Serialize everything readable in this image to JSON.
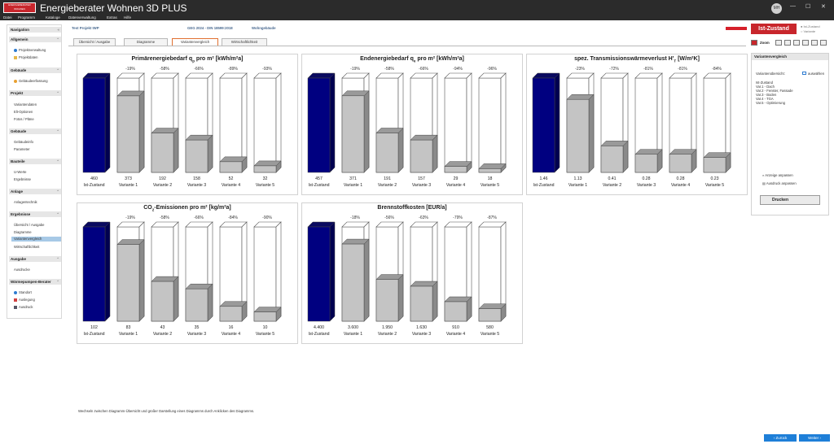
{
  "app": {
    "logo_text": "ENERGIEBERATER WOHNEN",
    "title": "Energieberater Wohnen 3D PLUS",
    "avatar": "MH",
    "min": "—",
    "max": "☐",
    "close": "✕"
  },
  "menu": [
    "Datei",
    "Programm",
    "Kataloge",
    "Datenverwaltung",
    "Extras",
    "Hilfe"
  ],
  "sidebar": {
    "title": "Navigation",
    "sections": [
      {
        "title": "Allgemein",
        "items": [
          "Projektverwaltung",
          "Projektdaten"
        ]
      },
      {
        "title": "Gebäude",
        "items": [
          "Gebäudeerfassung"
        ]
      },
      {
        "title": "Projekt",
        "items": [
          "Variantendaten",
          "Elt-Optionen",
          "Fotos / Pläne"
        ]
      },
      {
        "title": "Gebäude",
        "items": [
          "Gebäudeinfo",
          "Parameter"
        ]
      },
      {
        "title": "Bauteile",
        "items": [
          "U-Werte",
          "Ergebnisse"
        ]
      },
      {
        "title": "Anlage",
        "items": [
          "Anlagentechnik"
        ]
      },
      {
        "title": "Ergebnisse",
        "items": [
          "Übersicht / Ausgabe",
          "Diagramme",
          "Variantenvergleich",
          "Wirtschaftlichkeit"
        ]
      },
      {
        "title": "Ausgabe",
        "items": [
          "Ausdrucke"
        ]
      },
      {
        "title": "Wärmepumpen-Berater",
        "items": [
          "Standort",
          "Auslegung",
          "Ausdruck"
        ]
      }
    ]
  },
  "header": {
    "project": "Test Projekt IWP",
    "norm": "GEG 2024 - DIN 18599:2018",
    "type": "Wohngebäude"
  },
  "tabs": [
    "Übersicht / Ausgabe",
    "Diagramme",
    "Variantenvergleich",
    "Wirtschaftlichkeit"
  ],
  "right_panel": {
    "state_button": "Ist-Zustand",
    "radio1": "Ist-Zustand",
    "radio2": "Variante",
    "zoom_label": "Zoom",
    "panel_title": "Variantenvergleich",
    "overview_label": "Variantenübersicht:",
    "select_label": "auswählen",
    "variants": [
      "Ist-Zustand",
      "Var.1 - Dach",
      "Var.2 - Fenster, Fassade",
      "Var.3 - Boden",
      "Var.4 - TGA",
      "Var.5 - Optimierung"
    ],
    "adjust_chart": "Anzeige anpassen",
    "adjust_print": "Ausdruck anpassen",
    "print": "Drucken"
  },
  "footer_hint": "Wechseln zwischen Diagramm-Übersicht und großer Darstellung eines Diagramms durch Anklicken des Diagramms.",
  "nav": {
    "back": "Zurück",
    "next": "Weiter"
  },
  "colors": {
    "ist": "#000080",
    "var": "#c4c4c4",
    "accent": "#c8262c",
    "blue": "#1e7fd8"
  },
  "chart_data": [
    {
      "type": "bar",
      "title": "Primärenergiebedarf q",
      "title_sub": "p",
      "title_rest": " pro m²  [kWh/m²a]",
      "categories": [
        "Ist-Zustand",
        "Variante 1",
        "Variante 2",
        "Variante 3",
        "Variante 4",
        "Variante 5"
      ],
      "labels": [
        "460",
        "373",
        "192",
        "158",
        "52",
        "32"
      ],
      "values": [
        460,
        373,
        192,
        158,
        52,
        32
      ],
      "percent": [
        "",
        "-19%",
        "-58%",
        "-66%",
        "-89%",
        "-93%"
      ]
    },
    {
      "type": "bar",
      "title": "Endenergiebedarf q",
      "title_sub": "e",
      "title_rest": " pro m²  [kWh/m²a]",
      "categories": [
        "Ist-Zustand",
        "Variante 1",
        "Variante 2",
        "Variante 3",
        "Variante 4",
        "Variante 5"
      ],
      "labels": [
        "457",
        "371",
        "191",
        "157",
        "29",
        "18"
      ],
      "values": [
        457,
        371,
        191,
        157,
        29,
        18
      ],
      "percent": [
        "",
        "-19%",
        "-58%",
        "-66%",
        "-94%",
        "-96%"
      ]
    },
    {
      "type": "bar",
      "title": "spez. Transmissionswärmeverlust H'",
      "title_sub": "T",
      "title_rest": "  [W/m²K]",
      "categories": [
        "Ist-Zustand",
        "Variante 1",
        "Variante 2",
        "Variante 3",
        "Variante 4",
        "Variante 5"
      ],
      "labels": [
        "1.46",
        "1.13",
        "0.41",
        "0.28",
        "0.28",
        "0.23"
      ],
      "values": [
        1.46,
        1.13,
        0.41,
        0.28,
        0.28,
        0.23
      ],
      "percent": [
        "",
        "-23%",
        "-72%",
        "-81%",
        "-81%",
        "-84%"
      ]
    },
    {
      "type": "bar",
      "title": "CO",
      "title_sub": "2",
      "title_rest": "-Emissionen pro m²  [kg/m²a]",
      "categories": [
        "Ist-Zustand",
        "Variante 1",
        "Variante 2",
        "Variante 3",
        "Variante 4",
        "Variante 5"
      ],
      "labels": [
        "102",
        "83",
        "43",
        "35",
        "16",
        "10"
      ],
      "values": [
        102,
        83,
        43,
        35,
        16,
        10
      ],
      "percent": [
        "",
        "-19%",
        "-58%",
        "-66%",
        "-84%",
        "-90%"
      ]
    },
    {
      "type": "bar",
      "title": "Brennstoffkosten  [EUR/a]",
      "title_sub": "",
      "title_rest": "",
      "categories": [
        "Ist-Zustand",
        "Variante 1",
        "Variante 2",
        "Variante 3",
        "Variante 4",
        "Variante 5"
      ],
      "labels": [
        "4.400",
        "3.600",
        "1.950",
        "1.630",
        "910",
        "580"
      ],
      "values": [
        4400,
        3600,
        1950,
        1630,
        910,
        580
      ],
      "percent": [
        "",
        "-18%",
        "-56%",
        "-63%",
        "-79%",
        "-87%"
      ]
    }
  ]
}
